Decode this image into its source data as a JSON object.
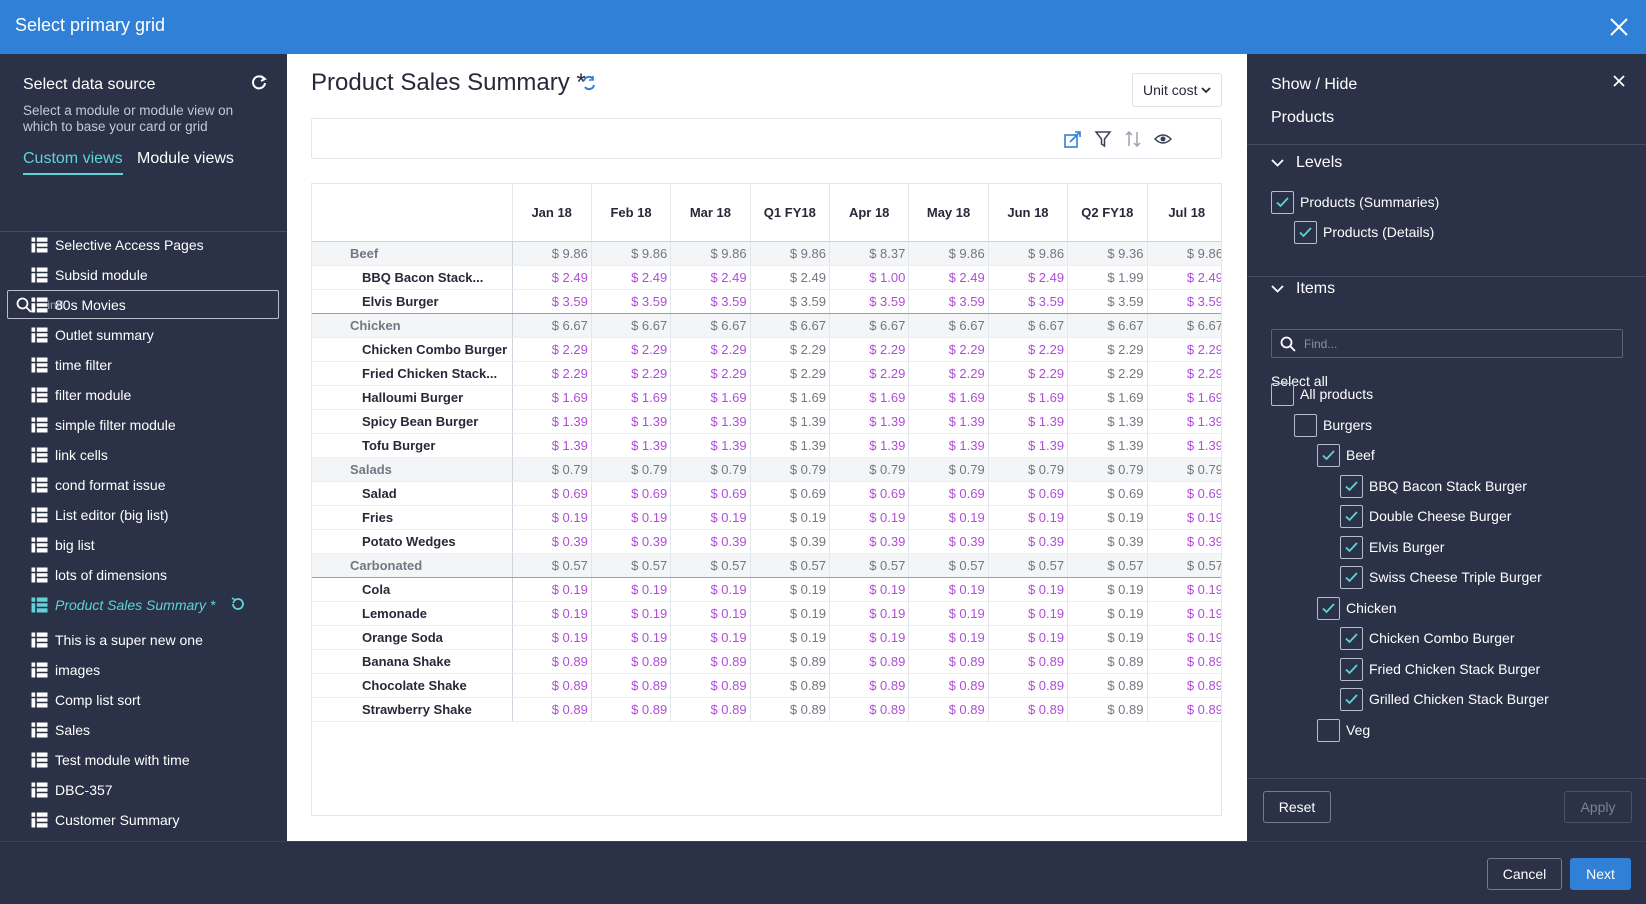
{
  "window": {
    "title": "Select primary grid"
  },
  "left_panel": {
    "heading": "Select data source",
    "subtext": "Select a module or module view on which to base your card or grid",
    "tabs": [
      "Custom views",
      "Module views"
    ],
    "search_placeholder": "Find...",
    "items": [
      "Selective Access Pages",
      "Subsid module",
      "80s Movies",
      "Outlet summary",
      "time filter",
      "filter module",
      "simple filter module",
      "link cells",
      "cond format issue",
      "List editor (big list)",
      "big list",
      "lots of dimensions",
      "Product Sales Summary *",
      "This is a super new one",
      "images",
      "Comp list sort",
      "Sales",
      "Test module with time",
      "DBC-357",
      "Customer Summary"
    ],
    "active_item": "Product Sales Summary *"
  },
  "grid_panel": {
    "title": "Product Sales Summary *",
    "dropdown_value": "Unit cost",
    "columns": [
      "Jan 18",
      "Feb 18",
      "Mar 18",
      "Q1 FY18",
      "Apr 18",
      "May 18",
      "Jun 18",
      "Q2 FY18",
      "Jul 18"
    ],
    "rows": [
      {
        "name": "Beef",
        "type": "summary",
        "values": [
          "$ 9.86",
          "$ 9.86",
          "$ 9.86",
          "$ 9.86",
          "$ 8.37",
          "$ 9.86",
          "$ 9.86",
          "$ 9.36",
          "$ 9.86"
        ]
      },
      {
        "name": "BBQ Bacon Stack...",
        "type": "detail",
        "values": [
          "$ 2.49",
          "$ 2.49",
          "$ 2.49",
          "$ 2.49",
          "$ 1.00",
          "$ 2.49",
          "$ 2.49",
          "$ 1.99",
          "$ 2.49"
        ]
      },
      {
        "name": "Elvis Burger",
        "type": "detail",
        "end": true,
        "values": [
          "$ 3.59",
          "$ 3.59",
          "$ 3.59",
          "$ 3.59",
          "$ 3.59",
          "$ 3.59",
          "$ 3.59",
          "$ 3.59",
          "$ 3.59"
        ]
      },
      {
        "name": "Chicken",
        "type": "summary",
        "values": [
          "$ 6.67",
          "$ 6.67",
          "$ 6.67",
          "$ 6.67",
          "$ 6.67",
          "$ 6.67",
          "$ 6.67",
          "$ 6.67",
          "$ 6.67"
        ]
      },
      {
        "name": "Chicken Combo Burger",
        "type": "detail",
        "values": [
          "$ 2.29",
          "$ 2.29",
          "$ 2.29",
          "$ 2.29",
          "$ 2.29",
          "$ 2.29",
          "$ 2.29",
          "$ 2.29",
          "$ 2.29"
        ]
      },
      {
        "name": "Fried Chicken Stack...",
        "type": "detail",
        "values": [
          "$ 2.29",
          "$ 2.29",
          "$ 2.29",
          "$ 2.29",
          "$ 2.29",
          "$ 2.29",
          "$ 2.29",
          "$ 2.29",
          "$ 2.29"
        ]
      },
      {
        "name": "Halloumi Burger",
        "type": "detail",
        "values": [
          "$ 1.69",
          "$ 1.69",
          "$ 1.69",
          "$ 1.69",
          "$ 1.69",
          "$ 1.69",
          "$ 1.69",
          "$ 1.69",
          "$ 1.69"
        ]
      },
      {
        "name": "Spicy Bean Burger",
        "type": "detail",
        "values": [
          "$ 1.39",
          "$ 1.39",
          "$ 1.39",
          "$ 1.39",
          "$ 1.39",
          "$ 1.39",
          "$ 1.39",
          "$ 1.39",
          "$ 1.39"
        ]
      },
      {
        "name": "Tofu Burger",
        "type": "detail",
        "values": [
          "$ 1.39",
          "$ 1.39",
          "$ 1.39",
          "$ 1.39",
          "$ 1.39",
          "$ 1.39",
          "$ 1.39",
          "$ 1.39",
          "$ 1.39"
        ]
      },
      {
        "name": "Salads",
        "type": "summary",
        "values": [
          "$ 0.79",
          "$ 0.79",
          "$ 0.79",
          "$ 0.79",
          "$ 0.79",
          "$ 0.79",
          "$ 0.79",
          "$ 0.79",
          "$ 0.79"
        ]
      },
      {
        "name": "Salad",
        "type": "detail",
        "values": [
          "$ 0.69",
          "$ 0.69",
          "$ 0.69",
          "$ 0.69",
          "$ 0.69",
          "$ 0.69",
          "$ 0.69",
          "$ 0.69",
          "$ 0.69"
        ]
      },
      {
        "name": "Fries",
        "type": "detail",
        "values": [
          "$ 0.19",
          "$ 0.19",
          "$ 0.19",
          "$ 0.19",
          "$ 0.19",
          "$ 0.19",
          "$ 0.19",
          "$ 0.19",
          "$ 0.19"
        ]
      },
      {
        "name": "Potato Wedges",
        "type": "detail",
        "values": [
          "$ 0.39",
          "$ 0.39",
          "$ 0.39",
          "$ 0.39",
          "$ 0.39",
          "$ 0.39",
          "$ 0.39",
          "$ 0.39",
          "$ 0.39"
        ]
      },
      {
        "name": "Carbonated",
        "type": "summary",
        "end": true,
        "values": [
          "$ 0.57",
          "$ 0.57",
          "$ 0.57",
          "$ 0.57",
          "$ 0.57",
          "$ 0.57",
          "$ 0.57",
          "$ 0.57",
          "$ 0.57"
        ]
      },
      {
        "name": "Cola",
        "type": "detail",
        "values": [
          "$ 0.19",
          "$ 0.19",
          "$ 0.19",
          "$ 0.19",
          "$ 0.19",
          "$ 0.19",
          "$ 0.19",
          "$ 0.19",
          "$ 0.19"
        ]
      },
      {
        "name": "Lemonade",
        "type": "detail",
        "values": [
          "$ 0.19",
          "$ 0.19",
          "$ 0.19",
          "$ 0.19",
          "$ 0.19",
          "$ 0.19",
          "$ 0.19",
          "$ 0.19",
          "$ 0.19"
        ]
      },
      {
        "name": "Orange Soda",
        "type": "detail",
        "values": [
          "$ 0.19",
          "$ 0.19",
          "$ 0.19",
          "$ 0.19",
          "$ 0.19",
          "$ 0.19",
          "$ 0.19",
          "$ 0.19",
          "$ 0.19"
        ]
      },
      {
        "name": "Banana Shake",
        "type": "detail",
        "values": [
          "$ 0.89",
          "$ 0.89",
          "$ 0.89",
          "$ 0.89",
          "$ 0.89",
          "$ 0.89",
          "$ 0.89",
          "$ 0.89",
          "$ 0.89"
        ]
      },
      {
        "name": "Chocolate Shake",
        "type": "detail",
        "values": [
          "$ 0.89",
          "$ 0.89",
          "$ 0.89",
          "$ 0.89",
          "$ 0.89",
          "$ 0.89",
          "$ 0.89",
          "$ 0.89",
          "$ 0.89"
        ]
      },
      {
        "name": "Strawberry Shake",
        "type": "detail",
        "values": [
          "$ 0.89",
          "$ 0.89",
          "$ 0.89",
          "$ 0.89",
          "$ 0.89",
          "$ 0.89",
          "$ 0.89",
          "$ 0.89",
          "$ 0.89"
        ]
      }
    ]
  },
  "right_panel": {
    "heading": "Show / Hide",
    "dimension": "Products",
    "levels_label": "Levels",
    "levels": [
      {
        "label": "Products (Summaries)",
        "checked": true
      },
      {
        "label": "Products (Details)",
        "checked": true
      }
    ],
    "items_label": "Items",
    "search_placeholder": "Find...",
    "select_all": "Select all",
    "tree": [
      {
        "label": "All products",
        "indent": 0,
        "checked": false
      },
      {
        "label": "Burgers",
        "indent": 1,
        "checked": false
      },
      {
        "label": "Beef",
        "indent": 2,
        "checked": true
      },
      {
        "label": "BBQ Bacon Stack Burger",
        "indent": 3,
        "checked": true
      },
      {
        "label": "Double Cheese Burger",
        "indent": 3,
        "checked": true
      },
      {
        "label": "Elvis Burger",
        "indent": 3,
        "checked": true
      },
      {
        "label": "Swiss Cheese Triple Burger",
        "indent": 3,
        "checked": true
      },
      {
        "label": "Chicken",
        "indent": 2,
        "checked": true
      },
      {
        "label": "Chicken Combo Burger",
        "indent": 3,
        "checked": true
      },
      {
        "label": "Fried Chicken Stack Burger",
        "indent": 3,
        "checked": true
      },
      {
        "label": "Grilled Chicken Stack Burger",
        "indent": 3,
        "checked": true
      },
      {
        "label": "Veg",
        "indent": 2,
        "checked": false
      }
    ],
    "reset_label": "Reset",
    "apply_label": "Apply"
  },
  "footer": {
    "cancel_label": "Cancel",
    "next_label": "Next"
  },
  "colors": {
    "titlebar": "#2f80d6",
    "panel": "#2b3147",
    "accent": "#5fd3d8",
    "input_value": "#b04dd8",
    "calc_value": "#737783"
  }
}
